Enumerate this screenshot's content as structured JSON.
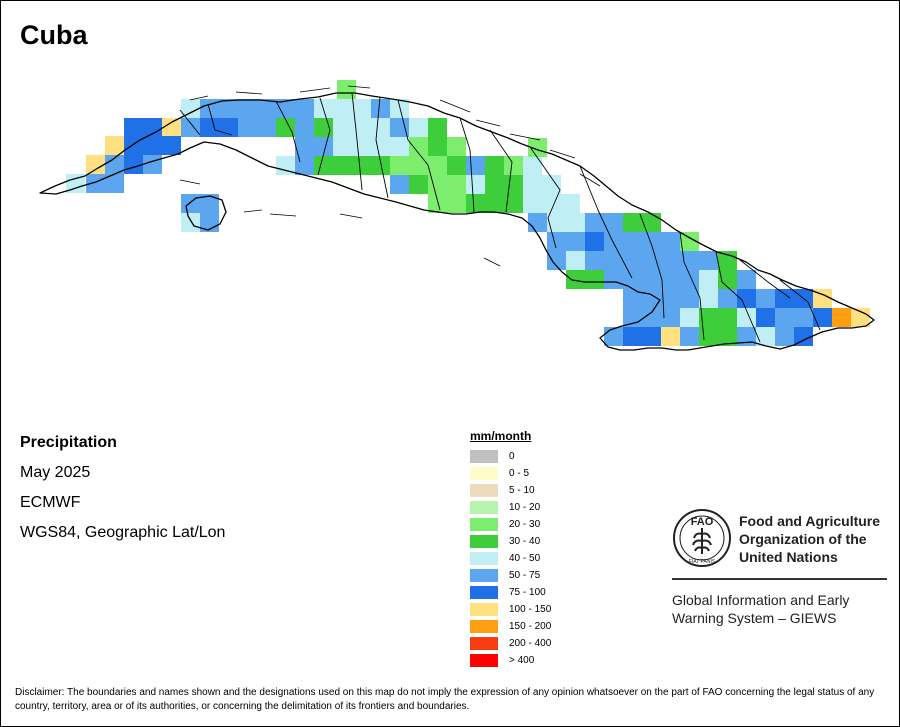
{
  "map": {
    "title": "Cuba",
    "info": {
      "variable": "Precipitation",
      "period": "May 2025",
      "source": "ECMWF",
      "projection": "WGS84, Geographic Lat/Lon"
    }
  },
  "legend": {
    "title": "mm/month",
    "items": [
      {
        "label": "0",
        "color": "#c0c0c0"
      },
      {
        "label": "0 - 5",
        "color": "#fffccc"
      },
      {
        "label": "5 - 10",
        "color": "#ecdcbc"
      },
      {
        "label": "10 - 20",
        "color": "#b8f4b0"
      },
      {
        "label": "20 - 30",
        "color": "#7ded6e"
      },
      {
        "label": "30 - 40",
        "color": "#3ece3c"
      },
      {
        "label": "40 - 50",
        "color": "#bfeef4"
      },
      {
        "label": "50 - 75",
        "color": "#5ba6ee"
      },
      {
        "label": "75 - 100",
        "color": "#2070e8"
      },
      {
        "label": "100 - 150",
        "color": "#ffe080"
      },
      {
        "label": "150 - 200",
        "color": "#ff9e10"
      },
      {
        "label": "200 - 400",
        "color": "#f63c10"
      },
      {
        "label": "> 400",
        "color": "#ff0000"
      }
    ]
  },
  "organization": {
    "logo_text": "FAO",
    "logo_motto": "FIAT PANIS",
    "name_lines": [
      "Food and Agriculture",
      "Organization of the",
      "United Nations"
    ],
    "system_lines": [
      "Global Information and Early",
      "Warning System – GIEWS"
    ]
  },
  "disclaimer": "Disclaimer: The boundaries and names shown and the designations used on this map do not imply the expression of any opinion whatsoever on the part of FAO concerning the legal status of any country, territory, area or of its authorities, or concerning the delimitation of its frontiers and boundaries."
}
